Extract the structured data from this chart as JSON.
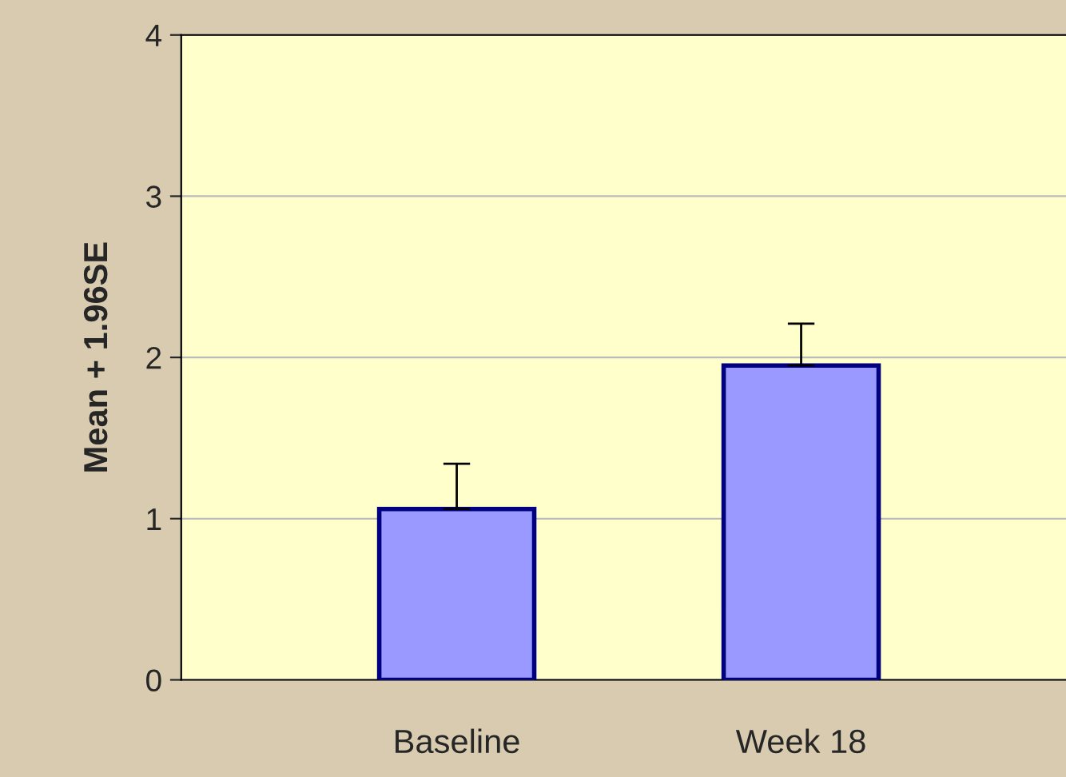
{
  "chart_data": {
    "type": "bar",
    "ylabel": "Mean + 1.96SE",
    "categories": [
      "Baseline",
      "Week 18"
    ],
    "values": [
      1.06,
      1.95
    ],
    "errors": [
      [
        1.06,
        1.34
      ],
      [
        1.95,
        2.21
      ]
    ],
    "color": "#9999ff",
    "ylim": [
      0,
      4
    ],
    "yticks": [
      0,
      1,
      2,
      3,
      4
    ],
    "grid": "y"
  }
}
